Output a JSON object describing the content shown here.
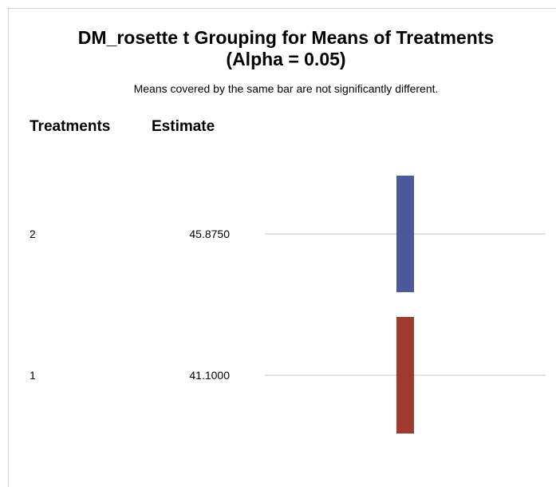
{
  "chart_data": {
    "type": "table",
    "title_line1": "DM_rosette t Grouping for Means of Treatments",
    "title_line2": "(Alpha = 0.05)",
    "subtitle": "Means covered by the same bar are not significantly different.",
    "columns": [
      "Treatments",
      "Estimate"
    ],
    "rows": [
      {
        "treatment": "2",
        "estimate": "45.8750",
        "value": 45.875
      },
      {
        "treatment": "1",
        "estimate": "41.1000",
        "value": 41.1
      }
    ],
    "grouping_bars": [
      {
        "rows": [
          0
        ],
        "color": "#4a5a9c"
      },
      {
        "rows": [
          1
        ],
        "color": "#a03a2e"
      }
    ],
    "row_line_color": "#e3e3e3"
  }
}
